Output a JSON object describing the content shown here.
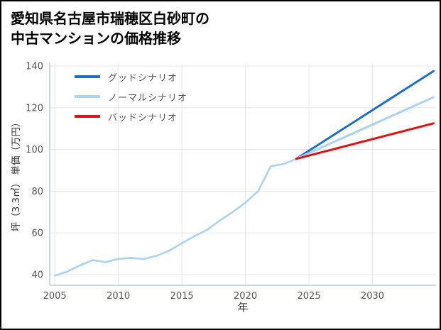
{
  "title": {
    "line1": "愛知県名古屋市瑞穂区白砂町の",
    "line2": "中古マンションの価格推移"
  },
  "chart_data": {
    "type": "line",
    "title": "愛知県名古屋市瑞穂区白砂町の中古マンションの価格推移",
    "xlabel": "年",
    "ylabel": "坪（3.3㎡） 単価（万円）",
    "xlim": [
      2005,
      2035
    ],
    "ylim": [
      40,
      140
    ],
    "x_ticks": [
      2005,
      2010,
      2015,
      2020,
      2025,
      2030
    ],
    "y_ticks": [
      40,
      60,
      80,
      100,
      120,
      140
    ],
    "grid": true,
    "legend_position": "top-left",
    "colors": {
      "grid": "#e7e7e7",
      "axis": "#b9cadb",
      "tick_text": "#555555",
      "good": "#1b6ec8",
      "normal": "#a9d2f3",
      "bad": "#e01111"
    },
    "history": {
      "color": "#a9d2f3",
      "x": [
        2005,
        2006,
        2007,
        2008,
        2009,
        2010,
        2011,
        2012,
        2013,
        2014,
        2015,
        2016,
        2017,
        2018,
        2019,
        2020,
        2021,
        2022,
        2023,
        2024
      ],
      "y": [
        39.5,
        41.5,
        44.5,
        47,
        46,
        47.5,
        48,
        47.5,
        49,
        51.5,
        55,
        58.5,
        61.5,
        66,
        70,
        74.5,
        80,
        92,
        93,
        95.5
      ]
    },
    "series": [
      {
        "name": "グッドシナリオ",
        "color": "#1b6ec8",
        "x": [
          2024,
          2034.8
        ],
        "y": [
          95.5,
          137.5
        ]
      },
      {
        "name": "ノーマルシナリオ",
        "color": "#a9d2f3",
        "x": [
          2024,
          2034.8
        ],
        "y": [
          95.5,
          125
        ]
      },
      {
        "name": "バッドシナリオ",
        "color": "#e01111",
        "x": [
          2024,
          2034.8
        ],
        "y": [
          95.5,
          112.5
        ]
      }
    ]
  }
}
